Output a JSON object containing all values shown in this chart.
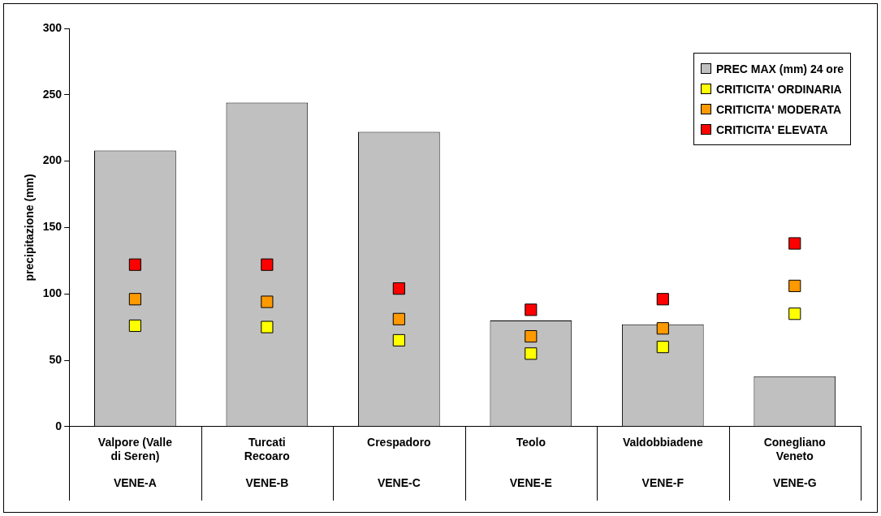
{
  "chart_data": {
    "type": "bar",
    "ylabel": "precipitazione (mm)",
    "categories": [
      "Valpore (Valle di Seren)\nVENE-A",
      "Turcati Recoaro\nVENE-B",
      "Crespadoro\nVENE-C",
      "Teolo\nVENE-E",
      "Valdobbiadene\nVENE-F",
      "Conegliano Veneto\nVENE-G"
    ],
    "series": [
      {
        "name": "PREC MAX (mm) 24 ore",
        "type": "bar",
        "color": "#c0c0c0",
        "values": [
          208,
          244,
          222,
          80,
          77,
          38
        ]
      },
      {
        "name": "CRITICITA' ORDINARIA",
        "type": "scatter",
        "color": "#ffff00",
        "x": [
          "Valpore (Valle di Seren)\nVENE-A",
          "Turcati Recoaro\nVENE-B",
          "Crespadoro\nVENE-C",
          "Teolo\nVENE-E",
          "Valdobbiadene\nVENE-F",
          "Conegliano Veneto\nVENE-G"
        ],
        "values": [
          76,
          75,
          65,
          55,
          60,
          85
        ]
      },
      {
        "name": "CRITICITA' MODERATA",
        "type": "scatter",
        "color": "#ff9900",
        "x": [
          "Valpore (Valle di Seren)\nVENE-A",
          "Turcati Recoaro\nVENE-B",
          "Crespadoro\nVENE-C",
          "Teolo\nVENE-E",
          "Valdobbiadene\nVENE-F",
          "Conegliano Veneto\nVENE-G"
        ],
        "values": [
          96,
          94,
          81,
          68,
          74,
          106
        ]
      },
      {
        "name": "CRITICITA' ELEVATA",
        "type": "scatter",
        "color": "#ff0000",
        "x": [
          "Valpore (Valle di Seren)\nVENE-A",
          "Turcati Recoaro\nVENE-B",
          "Crespadoro\nVENE-C",
          "Teolo\nVENE-E",
          "Valdobbiadene\nVENE-F",
          "Conegliano Veneto\nVENE-G"
        ],
        "values": [
          122,
          122,
          104,
          88,
          96,
          138
        ]
      }
    ],
    "ylim": [
      0,
      300
    ],
    "yticks": [
      0,
      50,
      100,
      150,
      200,
      250,
      300
    ],
    "grid": false,
    "legend": "top right",
    "marker": "square"
  }
}
